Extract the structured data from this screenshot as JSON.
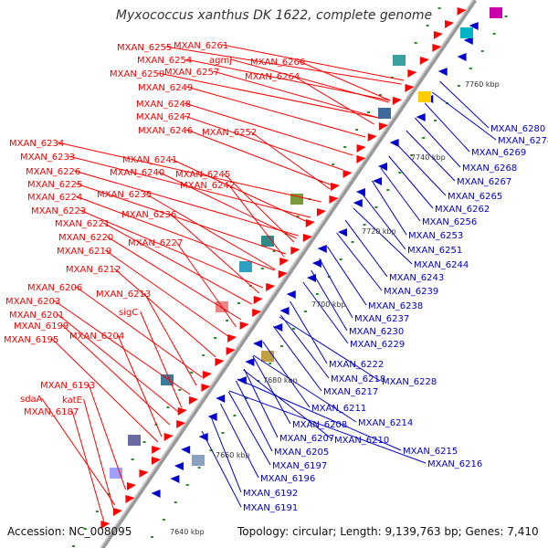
{
  "title": "Myxococcus xanthus DK 1622, complete genome",
  "accession": "Accession: NC_008095",
  "topology": "Topology: circular; Length: 9,139,763 bp; Genes: 7,410",
  "colors": {
    "left_label": "#ff0000",
    "right_label": "#0000cc",
    "genome_line": "#888888"
  },
  "kbp_ticks": [
    "7640 kbp",
    "7660 kbp",
    "7680 kbp",
    "7700 kbp",
    "7720 kbp",
    "7740 kbp",
    "7760 kbp"
  ],
  "left_labels": [
    "MXAN_6261",
    "MXAN_6255",
    "MXAN_6266",
    "MXAN_6254",
    "agmJ",
    "MXAN_6250",
    "MXAN_6257",
    "MXAN_6264",
    "MXAN_6249",
    "MXAN_6248",
    "MXAN_6247",
    "MXAN_6246",
    "MXAN_6252",
    "MXAN_6234",
    "MXAN_6233",
    "MXAN_6241",
    "MXAN_6226",
    "MXAN_6240",
    "MXAN_6245",
    "MXAN_6225",
    "MXAN_6242",
    "MXAN_6224",
    "MXAN_6235",
    "MXAN_6223",
    "MXAN_6236",
    "MXAN_6221",
    "MXAN_6220",
    "MXAN_6227",
    "MXAN_6219",
    "MXAN_6212",
    "MXAN_6206",
    "MXAN_6213",
    "MXAN_6203",
    "sigC",
    "MXAN_6201",
    "MXAN_6199",
    "MXAN_6204",
    "MXAN_6195",
    "MXAN_6193",
    "sdaA",
    "katE",
    "MXAN_6187"
  ],
  "right_labels": [
    "MXAN_6280",
    "MXAN_6278",
    "MXAN_6269",
    "MXAN_6268",
    "MXAN_6267",
    "MXAN_6265",
    "MXAN_6262",
    "MXAN_6256",
    "MXAN_6253",
    "MXAN_6251",
    "MXAN_6244",
    "MXAN_6243",
    "MXAN_6239",
    "MXAN_6238",
    "MXAN_6237",
    "MXAN_6230",
    "MXAN_6229",
    "MXAN_6222",
    "MXAN_6218",
    "MXAN_6228",
    "MXAN_6217",
    "MXAN_6211",
    "MXAN_6214",
    "MXAN_6208",
    "MXAN_6207",
    "MXAN_6210",
    "MXAN_6205",
    "MXAN_6215",
    "MXAN_6216",
    "MXAN_6197",
    "MXAN_6196",
    "MXAN_6192",
    "MXAN_6191"
  ]
}
